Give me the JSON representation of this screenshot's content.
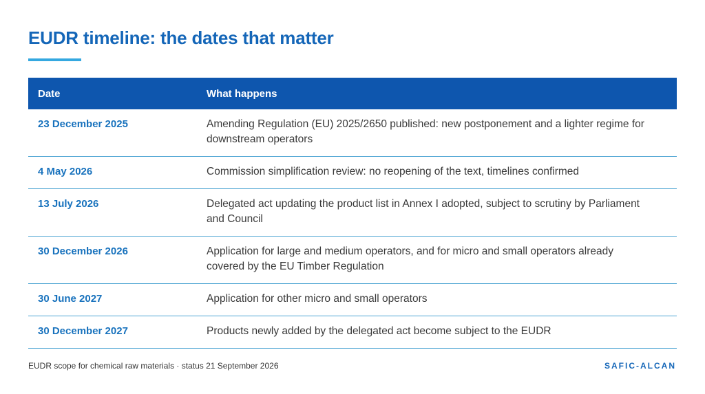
{
  "title": "EUDR timeline: the dates that matter",
  "colors": {
    "accent": "#1466b8",
    "header_bg": "#0e56ae",
    "underline": "#35a8e0",
    "date_text": "#1872bd"
  },
  "table": {
    "headers": [
      "Date",
      "What happens"
    ],
    "rows": [
      {
        "date": "23 December 2025",
        "text": "Amending Regulation (EU) 2025/2650 published: new postponement and a lighter regime for downstream operators"
      },
      {
        "date": "4 May 2026",
        "text": "Commission simplification review: no reopening of the text, timelines confirmed"
      },
      {
        "date": "13 July 2026",
        "text": "Delegated act updating the product list in Annex I adopted, subject to scrutiny by Parliament and Council"
      },
      {
        "date": "30 December 2026",
        "text": "Application for large and medium operators, and for micro and small operators already covered by the EU Timber Regulation"
      },
      {
        "date": "30 June 2027",
        "text": "Application for other micro and small operators"
      },
      {
        "date": "30 December 2027",
        "text": "Products newly added by the delegated act become subject to the EUDR"
      }
    ]
  },
  "footer": {
    "note": "EUDR scope for chemical raw materials · status 21 September 2026",
    "brand": "SAFIC-ALCAN"
  }
}
